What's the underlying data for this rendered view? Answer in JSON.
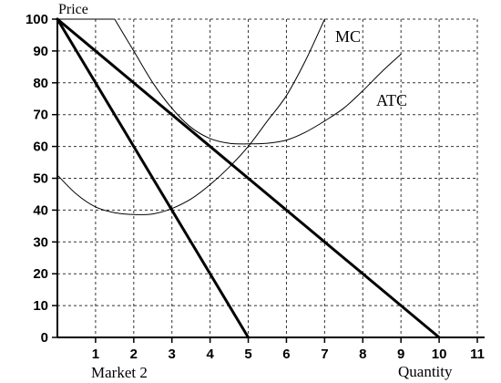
{
  "chart_data": {
    "type": "line",
    "title": "",
    "xlabel": "Quantity",
    "ylabel": "Price",
    "caption": "Market 2",
    "xlim": [
      0,
      11
    ],
    "ylim": [
      0,
      100
    ],
    "x_ticks": [
      1,
      2,
      3,
      4,
      5,
      6,
      7,
      8,
      9,
      10,
      11
    ],
    "y_ticks": [
      0,
      10,
      20,
      30,
      40,
      50,
      60,
      70,
      80,
      90,
      100
    ],
    "grid": true,
    "series": [
      {
        "label": "",
        "role": "demand",
        "points": [
          [
            0,
            100
          ],
          [
            10,
            0
          ]
        ]
      },
      {
        "label": "",
        "role": "marginal-revenue",
        "points": [
          [
            0,
            100
          ],
          [
            5,
            0
          ]
        ]
      },
      {
        "label": "MC",
        "role": "marginal-cost",
        "points": [
          [
            0,
            51
          ],
          [
            0.5,
            45
          ],
          [
            1,
            41
          ],
          [
            1.5,
            39.2
          ],
          [
            2,
            38.6
          ],
          [
            2.5,
            38.8
          ],
          [
            3,
            40.5
          ],
          [
            3.5,
            43.5
          ],
          [
            4,
            48
          ],
          [
            4.5,
            53.5
          ],
          [
            5,
            60
          ],
          [
            5.5,
            68
          ],
          [
            6,
            76
          ],
          [
            6.5,
            87
          ],
          [
            7,
            100
          ]
        ]
      },
      {
        "label": "ATC",
        "role": "average-total-cost",
        "points": [
          [
            1.5,
            100
          ],
          [
            2,
            90
          ],
          [
            2.5,
            80
          ],
          [
            3,
            72
          ],
          [
            3.5,
            66
          ],
          [
            4,
            62.5
          ],
          [
            4.5,
            61
          ],
          [
            5,
            60.8
          ],
          [
            5.5,
            61
          ],
          [
            6,
            62
          ],
          [
            6.5,
            64.5
          ],
          [
            7,
            68
          ],
          [
            7.5,
            72
          ],
          [
            8,
            77.5
          ],
          [
            8.5,
            83.5
          ],
          [
            9,
            89
          ]
        ]
      }
    ],
    "flat_top": {
      "label": "",
      "points": [
        [
          0,
          100
        ],
        [
          1.5,
          100
        ]
      ]
    },
    "annotations": [
      {
        "text": "MC",
        "x": 7.4,
        "y": 94
      },
      {
        "text": "ATC",
        "x": 8.3,
        "y": 74
      }
    ]
  }
}
